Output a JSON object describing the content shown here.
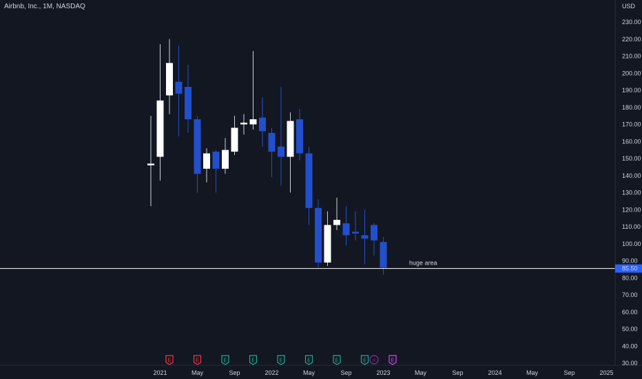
{
  "header": {
    "title": "Airbnb, Inc., 1M, NASDAQ",
    "currency": "USD"
  },
  "colors": {
    "background": "#131722",
    "up": "#ffffff",
    "down": "#2250cc",
    "line": "#ffffff",
    "text": "#d1d4dc",
    "price_badge": "#2962ff"
  },
  "chart_data": {
    "type": "candlestick",
    "title": "Airbnb, Inc., 1M, NASDAQ",
    "ylabel": "USD",
    "ylim": [
      30,
      240
    ],
    "y_ticks": [
      "230.00",
      "220.00",
      "210.00",
      "200.00",
      "190.00",
      "180.00",
      "170.00",
      "160.00",
      "150.00",
      "140.00",
      "130.00",
      "120.00",
      "110.00",
      "100.00",
      "90.00",
      "80.00",
      "70.00",
      "60.00",
      "50.00",
      "40.00",
      "30.00"
    ],
    "x_ticks": [
      "2021",
      "May",
      "Sep",
      "2022",
      "May",
      "Sep",
      "2023",
      "May",
      "Sep",
      "2024",
      "May",
      "Sep",
      "2025"
    ],
    "candles": [
      {
        "date": "2020-12",
        "o": 146,
        "h": 175,
        "l": 122,
        "c": 147
      },
      {
        "date": "2021-01",
        "o": 151,
        "h": 217,
        "l": 137,
        "c": 184
      },
      {
        "date": "2021-02",
        "o": 187,
        "h": 220,
        "l": 176,
        "c": 206
      },
      {
        "date": "2021-03",
        "o": 195,
        "h": 216,
        "l": 163,
        "c": 188
      },
      {
        "date": "2021-04",
        "o": 192,
        "h": 205,
        "l": 165,
        "c": 173
      },
      {
        "date": "2021-05",
        "o": 173,
        "h": 175,
        "l": 130,
        "c": 141
      },
      {
        "date": "2021-06",
        "o": 144,
        "h": 156,
        "l": 136,
        "c": 153
      },
      {
        "date": "2021-07",
        "o": 154,
        "h": 155,
        "l": 130,
        "c": 144
      },
      {
        "date": "2021-08",
        "o": 144,
        "h": 162,
        "l": 141,
        "c": 155
      },
      {
        "date": "2021-09",
        "o": 154,
        "h": 175,
        "l": 152,
        "c": 168
      },
      {
        "date": "2021-10",
        "o": 170,
        "h": 176,
        "l": 164,
        "c": 171
      },
      {
        "date": "2021-11",
        "o": 170,
        "h": 213,
        "l": 167,
        "c": 173
      },
      {
        "date": "2021-12",
        "o": 174,
        "h": 186,
        "l": 157,
        "c": 166
      },
      {
        "date": "2022-01",
        "o": 165,
        "h": 168,
        "l": 139,
        "c": 154
      },
      {
        "date": "2022-02",
        "o": 157,
        "h": 192,
        "l": 134,
        "c": 151
      },
      {
        "date": "2022-03",
        "o": 151,
        "h": 177,
        "l": 130,
        "c": 172
      },
      {
        "date": "2022-04",
        "o": 173,
        "h": 179,
        "l": 149,
        "c": 153
      },
      {
        "date": "2022-05",
        "o": 153,
        "h": 157,
        "l": 111,
        "c": 121
      },
      {
        "date": "2022-06",
        "o": 121,
        "h": 126,
        "l": 86,
        "c": 89
      },
      {
        "date": "2022-07",
        "o": 89,
        "h": 119,
        "l": 87,
        "c": 111
      },
      {
        "date": "2022-08",
        "o": 111,
        "h": 127,
        "l": 108,
        "c": 114
      },
      {
        "date": "2022-09",
        "o": 112,
        "h": 122,
        "l": 99,
        "c": 105
      },
      {
        "date": "2022-10",
        "o": 107,
        "h": 119,
        "l": 102,
        "c": 106
      },
      {
        "date": "2022-11",
        "o": 105,
        "h": 120,
        "l": 88,
        "c": 103
      },
      {
        "date": "2022-12",
        "o": 111,
        "h": 112,
        "l": 93,
        "c": 102
      },
      {
        "date": "2023-01",
        "o": 101,
        "h": 104,
        "l": 82,
        "c": 86
      }
    ],
    "horizontal_line": {
      "price": 85.5,
      "label": "huge area"
    },
    "current_price": "85.50",
    "events": [
      {
        "date": "2021-02",
        "kind": "earnings",
        "color": "#f23645",
        "glyph": "E"
      },
      {
        "date": "2021-05",
        "kind": "earnings",
        "color": "#f23645",
        "glyph": "E"
      },
      {
        "date": "2021-08",
        "kind": "earnings",
        "color": "#22ab94",
        "glyph": "E"
      },
      {
        "date": "2021-11",
        "kind": "earnings",
        "color": "#22ab94",
        "glyph": "E"
      },
      {
        "date": "2022-02",
        "kind": "earnings",
        "color": "#22ab94",
        "glyph": "E"
      },
      {
        "date": "2022-05",
        "kind": "earnings",
        "color": "#22ab94",
        "glyph": "E"
      },
      {
        "date": "2022-08",
        "kind": "earnings",
        "color": "#22ab94",
        "glyph": "E"
      },
      {
        "date": "2022-11",
        "kind": "earnings",
        "color": "#22ab94",
        "glyph": "E"
      },
      {
        "date": "2022-12",
        "kind": "dividend",
        "color": "#9c27b0",
        "glyph": "⚡"
      },
      {
        "date": "2023-02",
        "kind": "earnings",
        "color": "#e040fb",
        "glyph": "E"
      }
    ]
  }
}
